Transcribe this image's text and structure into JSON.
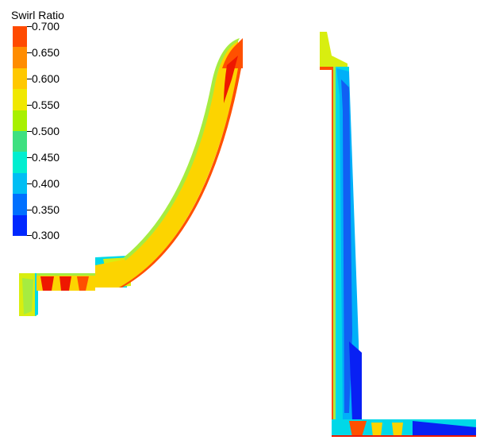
{
  "legend": {
    "title": "Swirl Ratio",
    "ticks": [
      "0.700",
      "0.650",
      "0.600",
      "0.550",
      "0.500",
      "0.450",
      "0.400",
      "0.350",
      "0.300"
    ],
    "colors": [
      "#ff4a00",
      "#ff8c00",
      "#ffc800",
      "#f0e800",
      "#a8f000",
      "#3ee080",
      "#00eed0",
      "#00bef4",
      "#0070ff",
      "#0028ff"
    ]
  },
  "palette": {
    "red": "#ee1800",
    "orange_red": "#ff5000",
    "yellow": "#fcd400",
    "yellow_green": "#d8ee10",
    "light_green": "#a6ec40",
    "cyan": "#00d8e8",
    "light_blue": "#00b0f8",
    "blue": "#1060f4",
    "dark_blue": "#0820f4"
  }
}
